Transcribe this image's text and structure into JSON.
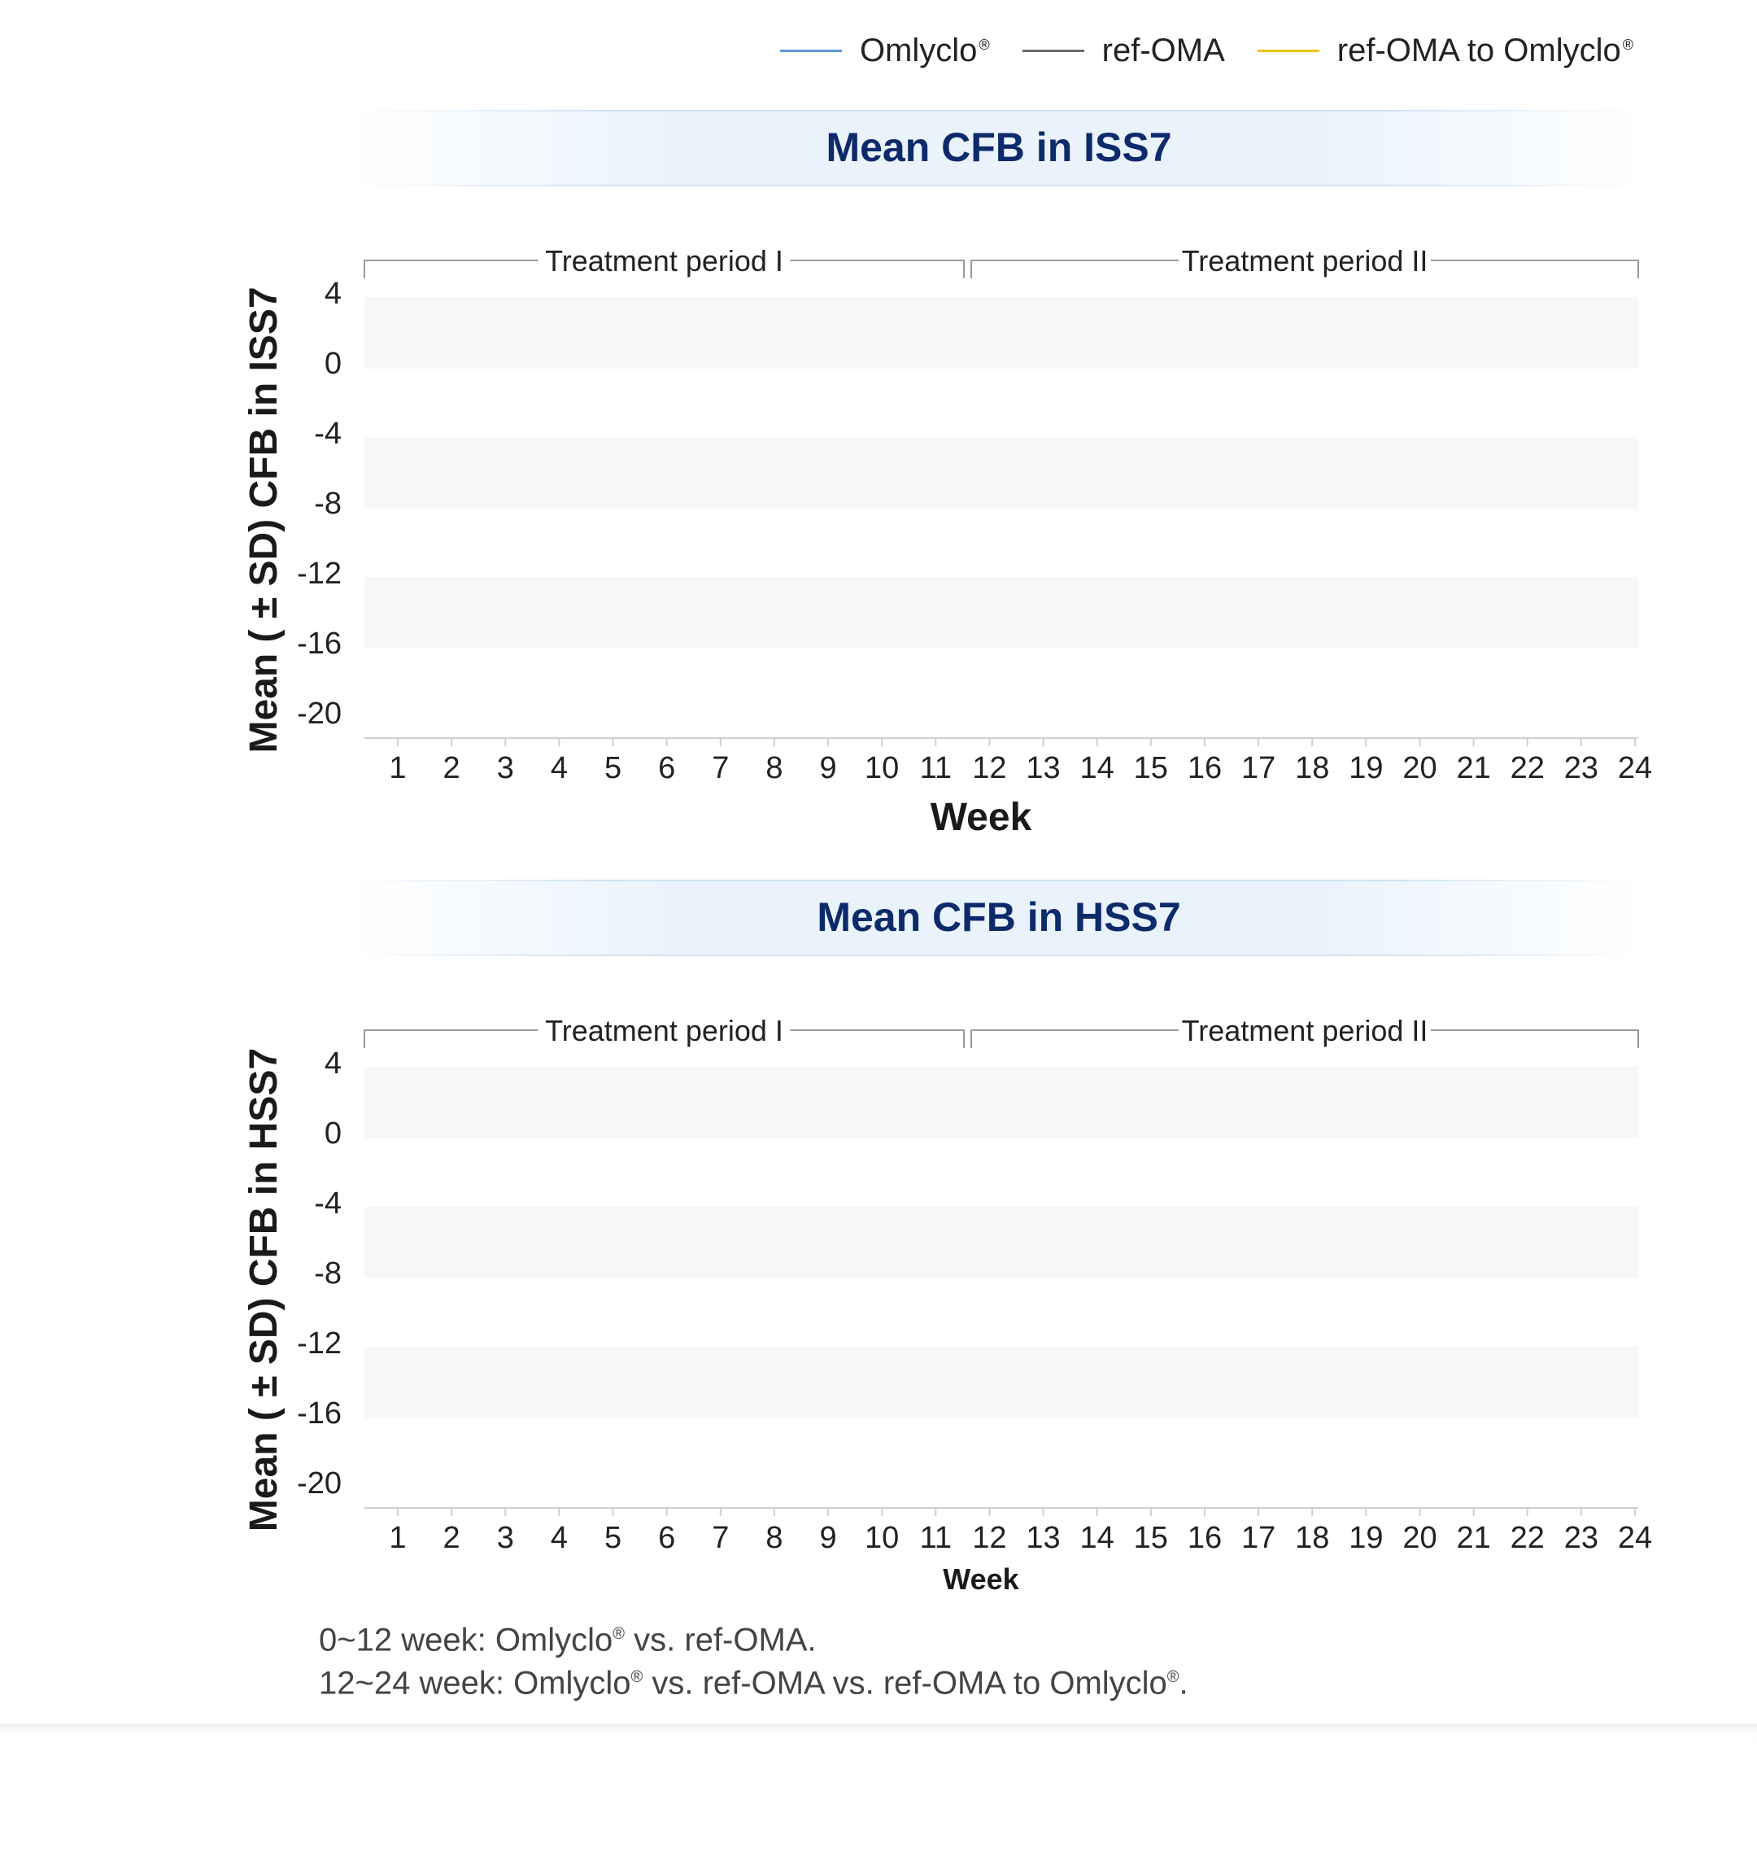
{
  "legend": [
    {
      "name": "Omlyclo",
      "reg": "®",
      "color": "#5b9bd5"
    },
    {
      "name": "ref-OMA",
      "reg": "",
      "color": "#6b6b6b"
    },
    {
      "name": "ref-OMA to Omlyclo",
      "reg": "®",
      "color": "#f2c318"
    }
  ],
  "chart_data": [
    {
      "type": "line",
      "title": "Mean CFB in ISS7",
      "ylabel": "Mean ( ± SD) CFB in ISS7",
      "xlabel": "Week",
      "x": [
        1,
        2,
        3,
        4,
        5,
        6,
        7,
        8,
        9,
        10,
        11,
        12,
        13,
        14,
        15,
        16,
        17,
        18,
        19,
        20,
        21,
        22,
        23,
        24
      ],
      "yticks": [
        4,
        0,
        -4,
        -8,
        -12,
        -16,
        -20
      ],
      "ylim": [
        -20,
        4
      ],
      "periods": [
        {
          "label": "Treatment period I",
          "from": 0,
          "to": 12
        },
        {
          "label": "Treatment period II",
          "from": 12,
          "to": 24
        }
      ],
      "series": []
    },
    {
      "type": "line",
      "title": "Mean CFB in HSS7",
      "ylabel": "Mean ( ± SD) CFB in HSS7",
      "xlabel": "Week",
      "x": [
        1,
        2,
        3,
        4,
        5,
        6,
        7,
        8,
        9,
        10,
        11,
        12,
        13,
        14,
        15,
        16,
        17,
        18,
        19,
        20,
        21,
        22,
        23,
        24
      ],
      "yticks": [
        4,
        0,
        -4,
        -8,
        -12,
        -16,
        -20
      ],
      "ylim": [
        -20,
        4
      ],
      "periods": [
        {
          "label": "Treatment period I",
          "from": 0,
          "to": 12
        },
        {
          "label": "Treatment period II",
          "from": 12,
          "to": 24
        }
      ],
      "series": []
    }
  ],
  "footnote": {
    "line1": {
      "a": "0~12 week: Omlyclo",
      "reg": "®",
      "b": " vs. ref-OMA."
    },
    "line2": {
      "a": "12~24 week: Omlyclo",
      "reg1": "®",
      "b": " vs. ref-OMA vs. ref-OMA to Omlyclo",
      "reg2": "®",
      "c": "."
    }
  }
}
